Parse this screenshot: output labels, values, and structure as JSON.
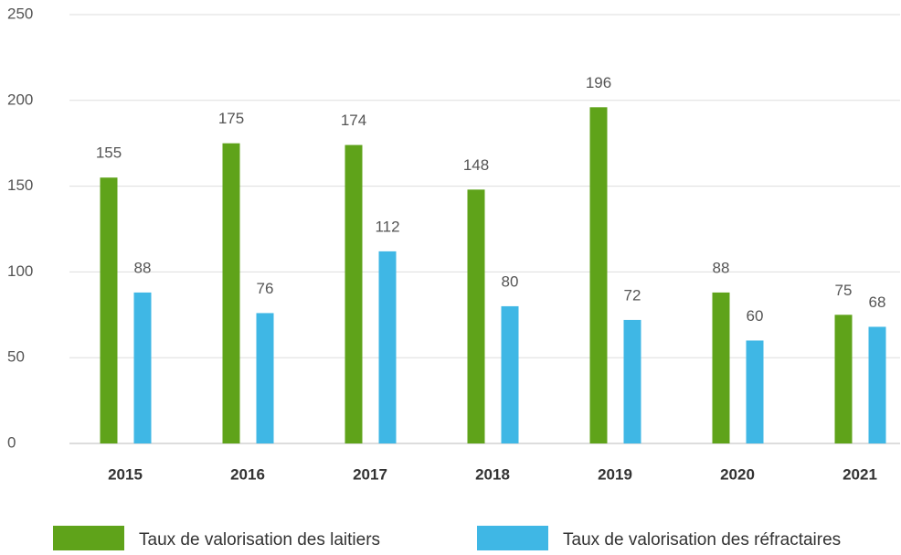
{
  "chart_data": {
    "type": "bar",
    "categories": [
      "2015",
      "2016",
      "2017",
      "2018",
      "2019",
      "2020",
      "2021"
    ],
    "series": [
      {
        "name": "Taux de valorisation des laitiers",
        "color": "#5fa31a",
        "values": [
          155,
          175,
          174,
          148,
          196,
          88,
          75
        ]
      },
      {
        "name": "Taux de valorisation des réfractaires",
        "color": "#3fb7e5",
        "values": [
          88,
          76,
          112,
          80,
          72,
          60,
          68
        ]
      }
    ],
    "ylim": [
      0,
      250
    ],
    "yticks": [
      0,
      50,
      100,
      150,
      200,
      250
    ],
    "grid": true,
    "legend": "bottom"
  }
}
